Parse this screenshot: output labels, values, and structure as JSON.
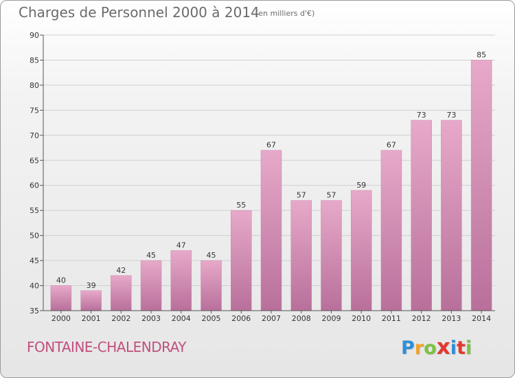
{
  "title": "Charges de Personnel 2000 à 2014",
  "unit_note": "(en milliers d'€)",
  "commune": "FONTAINE-CHALENDRAY",
  "logo": {
    "letters": [
      "P",
      "r",
      "o",
      "x",
      "i",
      "t",
      "i"
    ],
    "colors": [
      "#2f8fd6",
      "#f0a22a",
      "#7cc242",
      "#e2392e",
      "#2f8fd6",
      "#e2392e",
      "#7cc242"
    ]
  },
  "chart_data": {
    "type": "bar",
    "categories": [
      "2000",
      "2001",
      "2002",
      "2003",
      "2004",
      "2005",
      "2006",
      "2007",
      "2008",
      "2009",
      "2010",
      "2011",
      "2012",
      "2013",
      "2014"
    ],
    "values": [
      40,
      39,
      42,
      45,
      47,
      45,
      55,
      67,
      57,
      57,
      59,
      67,
      73,
      73,
      85
    ],
    "ylim": [
      35,
      90
    ],
    "yticks": [
      35,
      40,
      45,
      50,
      55,
      60,
      65,
      70,
      75,
      80,
      85,
      90
    ],
    "grid": true,
    "bar_color": "#d78bb3"
  }
}
